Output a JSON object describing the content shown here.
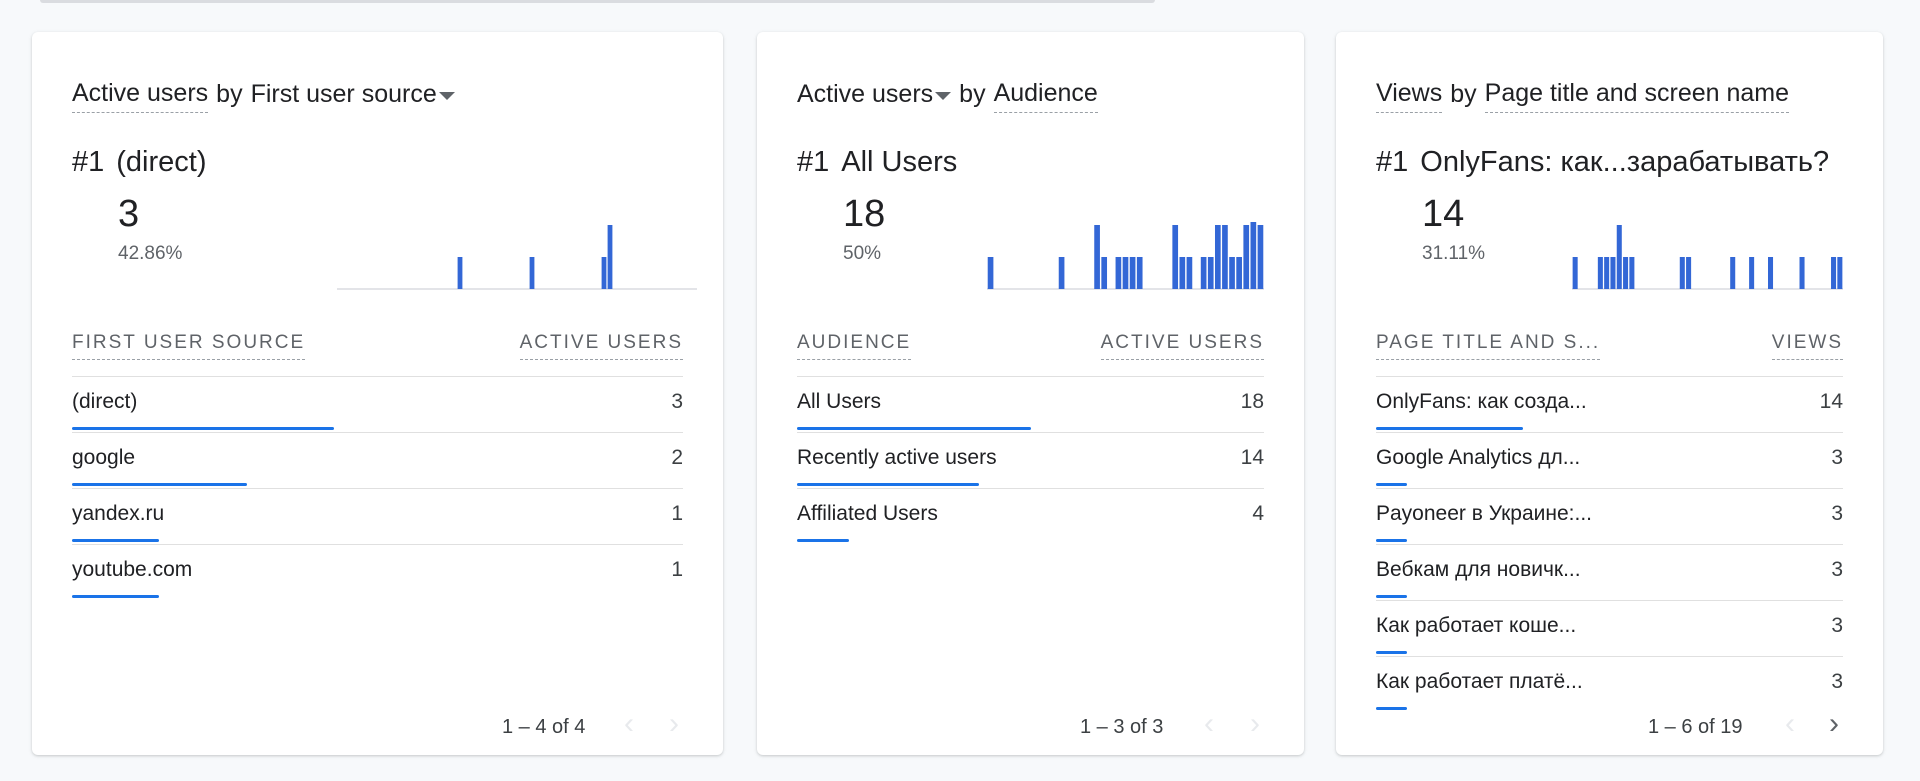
{
  "cards": [
    {
      "title_metric": "Active users",
      "title_by": "by",
      "title_dimension": "First user source",
      "top_rank": "#1",
      "top_name": "(direct)",
      "top_value": "3",
      "top_pct": "42.86%",
      "col_dimension": "FIRST USER SOURCE",
      "col_metric": "ACTIVE USERS",
      "rows": [
        {
          "label": "(direct)",
          "value": "3"
        },
        {
          "label": "google",
          "value": "2"
        },
        {
          "label": "yandex.ru",
          "value": "1"
        },
        {
          "label": "youtube.com",
          "value": "1"
        }
      ],
      "bar_fractions": [
        1.0,
        0.667,
        0.333,
        0.333
      ],
      "pager": "1 – 4 of 4",
      "next_enabled": false,
      "spark": [
        0,
        0,
        0,
        0,
        0,
        0,
        0,
        0,
        0,
        0,
        0,
        0,
        0,
        0,
        0,
        0,
        0,
        0,
        0,
        0,
        1,
        0,
        0,
        0,
        0,
        0,
        0,
        0,
        0,
        0,
        0,
        0,
        1,
        0,
        0,
        0,
        0,
        0,
        0,
        0,
        0,
        0,
        0,
        0,
        1,
        2,
        0,
        0,
        0,
        0,
        0,
        0,
        0,
        0,
        0,
        0,
        0,
        0,
        0,
        0
      ]
    },
    {
      "title_metric": "Active users",
      "title_by": "by",
      "title_dimension": "Audience",
      "top_rank": "#1",
      "top_name": "All Users",
      "top_value": "18",
      "top_pct": "50%",
      "col_dimension": "AUDIENCE",
      "col_metric": "ACTIVE USERS",
      "rows": [
        {
          "label": "All Users",
          "value": "18"
        },
        {
          "label": "Recently active users",
          "value": "14"
        },
        {
          "label": "Affiliated Users",
          "value": "4"
        }
      ],
      "bar_fractions": [
        1.0,
        0.778,
        0.222
      ],
      "pager": "1 – 3 of 3",
      "next_enabled": false,
      "spark": [
        1,
        0,
        0,
        0,
        0,
        0,
        0,
        0,
        0,
        0,
        1,
        0,
        0,
        0,
        0,
        2,
        1,
        0,
        1,
        1,
        1,
        1,
        0,
        0,
        0,
        0,
        2,
        1,
        1,
        0,
        1,
        1,
        2,
        2,
        1,
        1,
        2,
        3,
        2
      ]
    },
    {
      "title_metric": "Views",
      "title_by": "by",
      "title_dimension": "Page title and screen name",
      "top_rank": "#1",
      "top_name": "OnlyFans: как...зарабатывать?",
      "top_value": "14",
      "top_pct": "31.11%",
      "col_dimension": "PAGE TITLE AND S...",
      "col_metric": "VIEWS",
      "rows": [
        {
          "label": "OnlyFans: как созда...",
          "value": "14"
        },
        {
          "label": "Google Analytics дл...",
          "value": "3"
        },
        {
          "label": "Payoneer в Украине:...",
          "value": "3"
        },
        {
          "label": "Вебкам для новичк...",
          "value": "3"
        },
        {
          "label": "Как работает коше...",
          "value": "3"
        },
        {
          "label": "Как работает платё...",
          "value": "3"
        }
      ],
      "bar_fractions": [
        1.0,
        0.214,
        0.214,
        0.214,
        0.214,
        0.214
      ],
      "pager": "1 – 6 of 19",
      "next_enabled": true,
      "spark": [
        1,
        0,
        0,
        0,
        1,
        1,
        1,
        2,
        1,
        1,
        0,
        0,
        0,
        0,
        0,
        0,
        0,
        1,
        1,
        0,
        0,
        0,
        0,
        0,
        0,
        1,
        0,
        0,
        1,
        0,
        0,
        1,
        0,
        0,
        0,
        0,
        1,
        0,
        0,
        0,
        0,
        1,
        1
      ]
    }
  ],
  "prev_icon": "chevron-left-icon",
  "next_icon": "chevron-right-icon",
  "accent_color": "#1a73e8",
  "chart_color": "#3367d6"
}
